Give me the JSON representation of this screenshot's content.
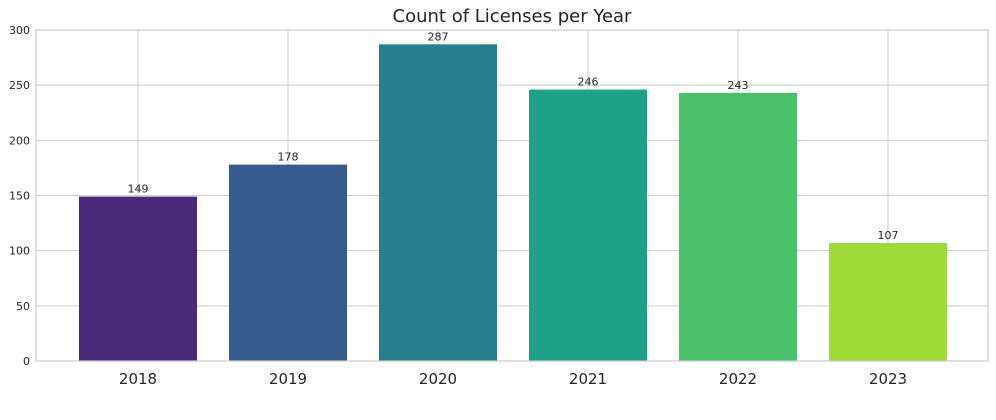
{
  "chart_data": {
    "type": "bar",
    "title": "Count of Licenses per Year",
    "xlabel": "",
    "ylabel": "",
    "categories": [
      "2018",
      "2019",
      "2020",
      "2021",
      "2022",
      "2023"
    ],
    "values": [
      149,
      178,
      287,
      246,
      243,
      107
    ],
    "data_labels": [
      "149",
      "178",
      "287",
      "246",
      "243",
      "107"
    ],
    "colors": [
      "#482878",
      "#365c8d",
      "#277f8e",
      "#1fa187",
      "#4ac16d",
      "#a0da39"
    ],
    "ylim": [
      0,
      300
    ],
    "yticks": [
      0,
      50,
      100,
      150,
      200,
      250,
      300
    ],
    "ytick_labels": [
      "0",
      "50",
      "100",
      "150",
      "200",
      "250",
      "300"
    ],
    "grid": true,
    "legend": "none"
  }
}
